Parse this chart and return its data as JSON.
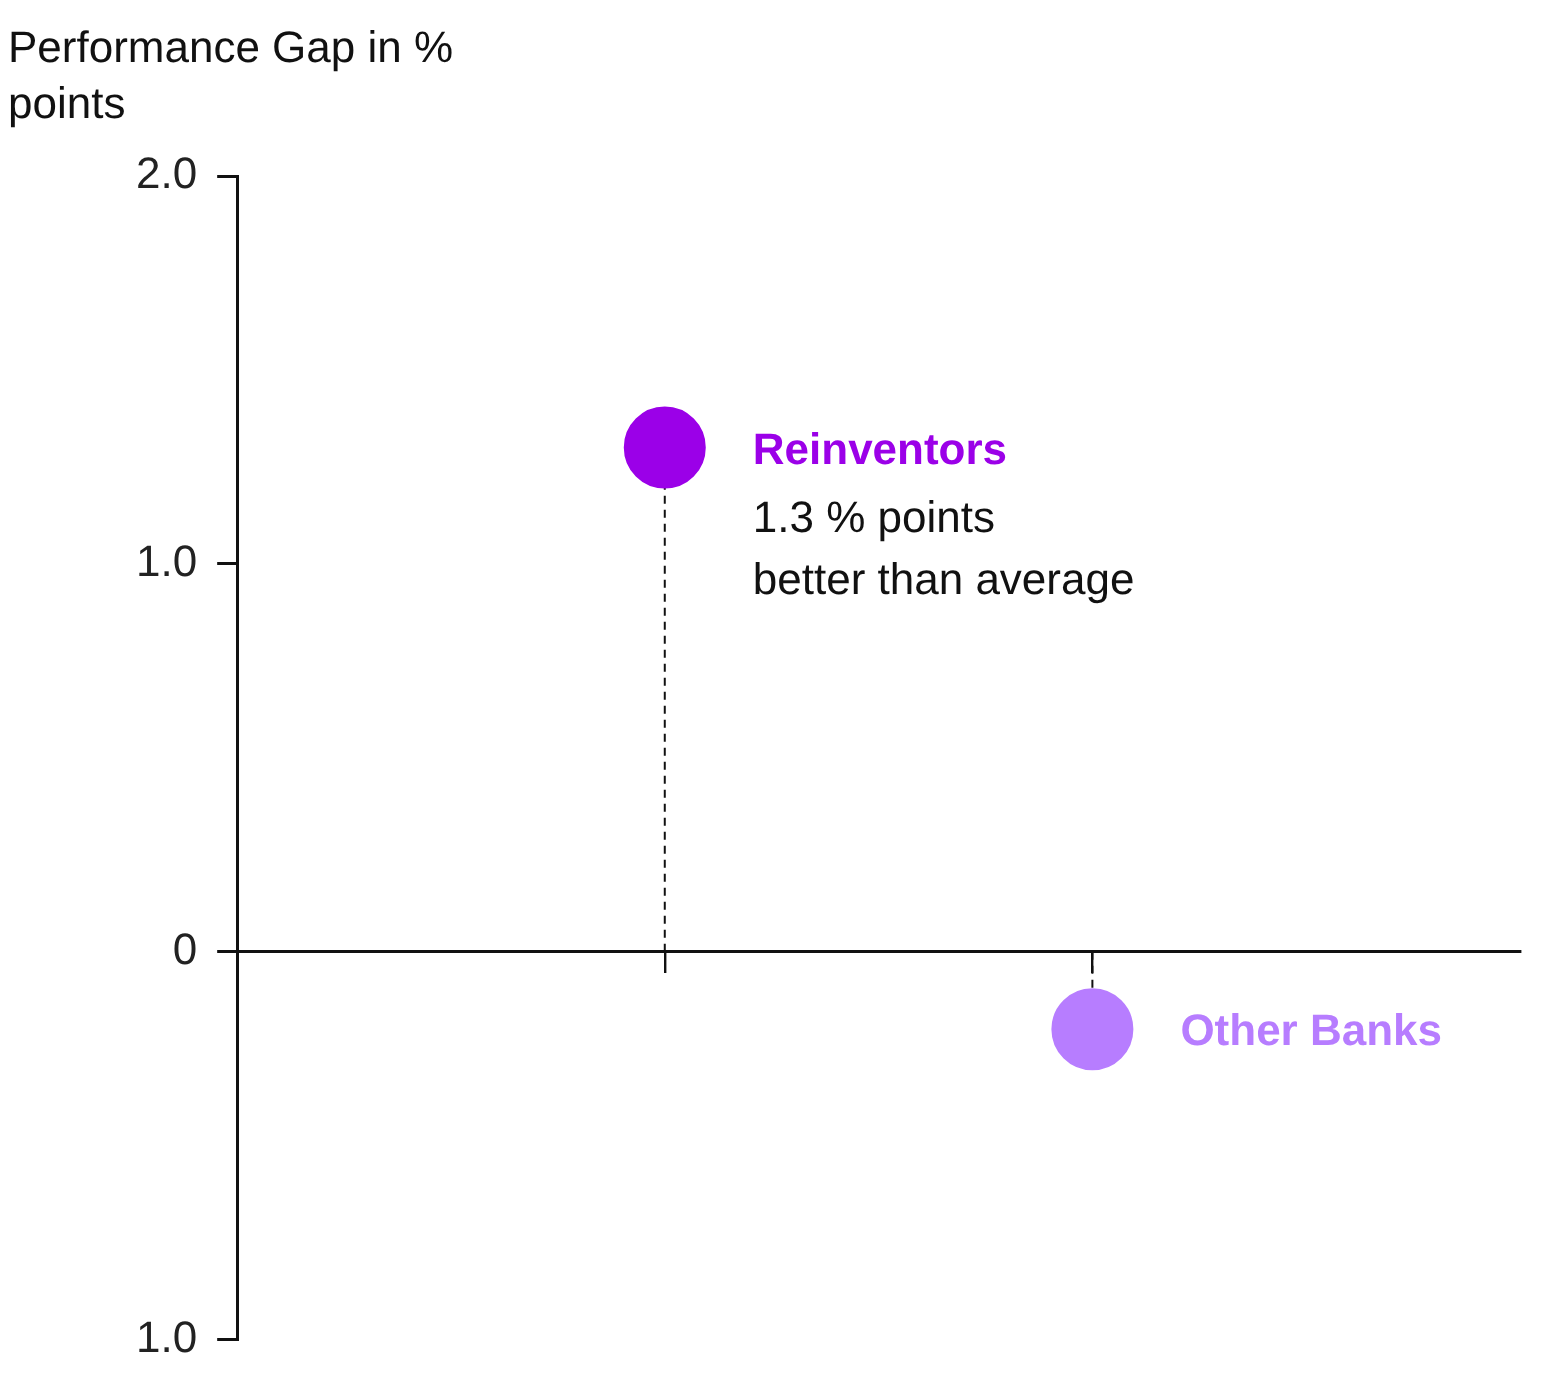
{
  "chart_data": {
    "type": "lollipop",
    "ylabel": "Performance Gap in % points",
    "categories": [
      null,
      null
    ],
    "series": [
      {
        "name": "Reinventors",
        "color": "#9b00e8",
        "values": [
          1.3,
          null
        ]
      },
      {
        "name": "Other Banks",
        "color": "#b77dff",
        "values": [
          null,
          -0.2
        ]
      }
    ],
    "ylim": [
      -1,
      2
    ],
    "yticks": [
      {
        "value": 2,
        "label": "2.0"
      },
      {
        "value": 1,
        "label": "1.0"
      },
      0,
      {
        "value": -1,
        "label": "1.0"
      }
    ],
    "annotations": [
      "1.3 % points\nbetter than average"
    ],
    "tick_labels": "y",
    "legend": false,
    "marker": "circle",
    "line_style": "dashed"
  }
}
